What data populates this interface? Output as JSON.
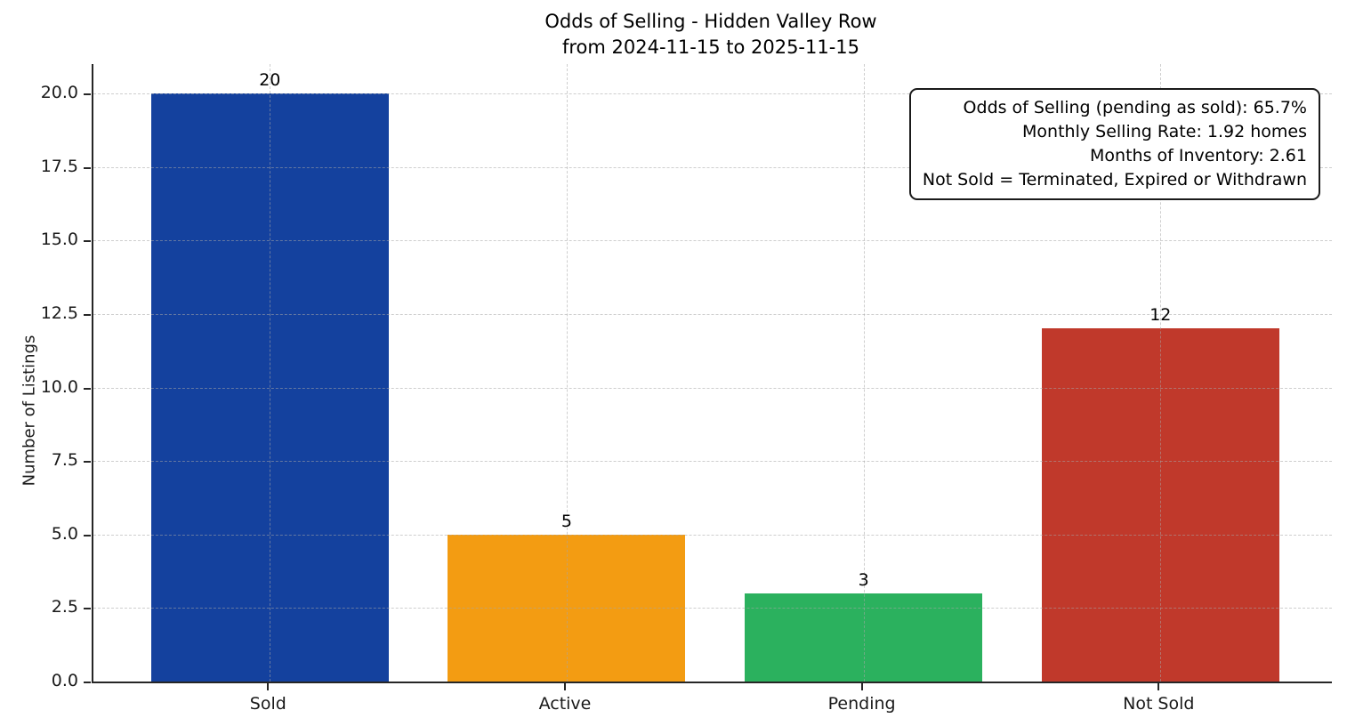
{
  "chart_data": {
    "type": "bar",
    "title": "Odds of Selling - Hidden Valley Row",
    "subtitle": "from 2024-11-15 to 2025-11-15",
    "ylabel": "Number of Listings",
    "xlabel": "",
    "categories": [
      "Sold",
      "Active",
      "Pending",
      "Not Sold"
    ],
    "values": [
      20,
      5,
      3,
      12
    ],
    "value_labels": [
      "20",
      "5",
      "3",
      "12"
    ],
    "bar_colors": [
      "#14419e",
      "#f39c12",
      "#2bb15e",
      "#c0392b"
    ],
    "ylim": [
      0,
      21
    ],
    "yticks": [
      0,
      2.5,
      5,
      7.5,
      10,
      12.5,
      15,
      17.5,
      20
    ],
    "ytick_labels": [
      "0.0",
      "2.5",
      "5.0",
      "7.5",
      "10.0",
      "12.5",
      "15.0",
      "17.5",
      "20.0"
    ],
    "grid": {
      "visible": true,
      "axes": "both",
      "linestyle": "dashed",
      "color": "#b0b0b0",
      "drawn_above_bars": true
    },
    "legend": {
      "visible": false
    },
    "spine_color": "#262626",
    "annotation": {
      "position": "top-right",
      "lines": [
        "Odds of Selling (pending as sold): 65.7%",
        "Monthly Selling Rate: 1.92 homes",
        "Months of Inventory: 2.61",
        "Not Sold = Terminated, Expired or Withdrawn"
      ]
    }
  }
}
